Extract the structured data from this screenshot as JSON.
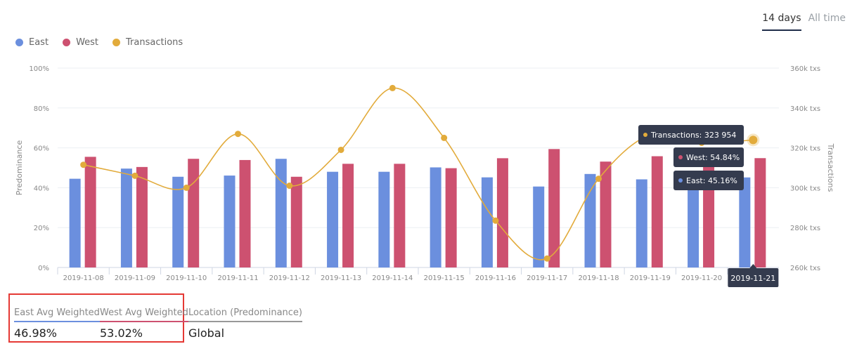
{
  "range_tabs": {
    "active": "14 days",
    "other": "All time"
  },
  "legend": [
    {
      "name": "East",
      "color": "#6b8fde"
    },
    {
      "name": "West",
      "color": "#cd5170"
    },
    {
      "name": "Transactions",
      "color": "#e2ab3b"
    }
  ],
  "chart_data": {
    "type": "bar",
    "categories": [
      "2019-11-08",
      "2019-11-09",
      "2019-11-10",
      "2019-11-11",
      "2019-11-12",
      "2019-11-13",
      "2019-11-14",
      "2019-11-15",
      "2019-11-16",
      "2019-11-17",
      "2019-11-18",
      "2019-11-19",
      "2019-11-20",
      "2019-11-21"
    ],
    "series": [
      {
        "name": "East",
        "axis": "left",
        "color": "#6b8fde",
        "values": [
          44.5,
          49.6,
          45.5,
          46.1,
          54.5,
          48.0,
          48.0,
          50.2,
          45.2,
          40.6,
          46.9,
          44.2,
          45.0,
          45.16
        ]
      },
      {
        "name": "West",
        "axis": "left",
        "color": "#cd5170",
        "values": [
          55.5,
          50.4,
          54.5,
          53.9,
          45.5,
          52.0,
          52.0,
          49.8,
          54.8,
          59.4,
          53.1,
          55.8,
          55.0,
          54.84
        ]
      },
      {
        "name": "Transactions",
        "axis": "right",
        "type": "line",
        "color": "#e2ab3b",
        "values": [
          311500,
          306000,
          300000,
          327000,
          301000,
          319000,
          350000,
          325000,
          283500,
          264500,
          304500,
          326500,
          322500,
          323954
        ]
      }
    ],
    "y_left": {
      "label": "Predominance",
      "ticks": [
        "0%",
        "20%",
        "40%",
        "60%",
        "80%",
        "100%"
      ],
      "min": 0,
      "max": 100
    },
    "y_right": {
      "label": "Transactions",
      "ticks": [
        "260k txs",
        "280k txs",
        "300k txs",
        "320k txs",
        "340k txs",
        "360k txs"
      ],
      "min": 260000,
      "max": 360000
    },
    "grid": true,
    "highlighted_category": "2019-11-21",
    "tooltip": {
      "transactions": "Transactions: 323 954",
      "west": "West: 54.84%",
      "east": "East: 45.16%"
    }
  },
  "summary": [
    {
      "label": "East Avg Weighted",
      "value": "46.98%",
      "color": "#6b8fde"
    },
    {
      "label": "West Avg Weighted",
      "value": "53.02%",
      "color": "#cd5170"
    },
    {
      "label": "Location (Predominance)",
      "value": "Global",
      "color": "#999999"
    }
  ]
}
